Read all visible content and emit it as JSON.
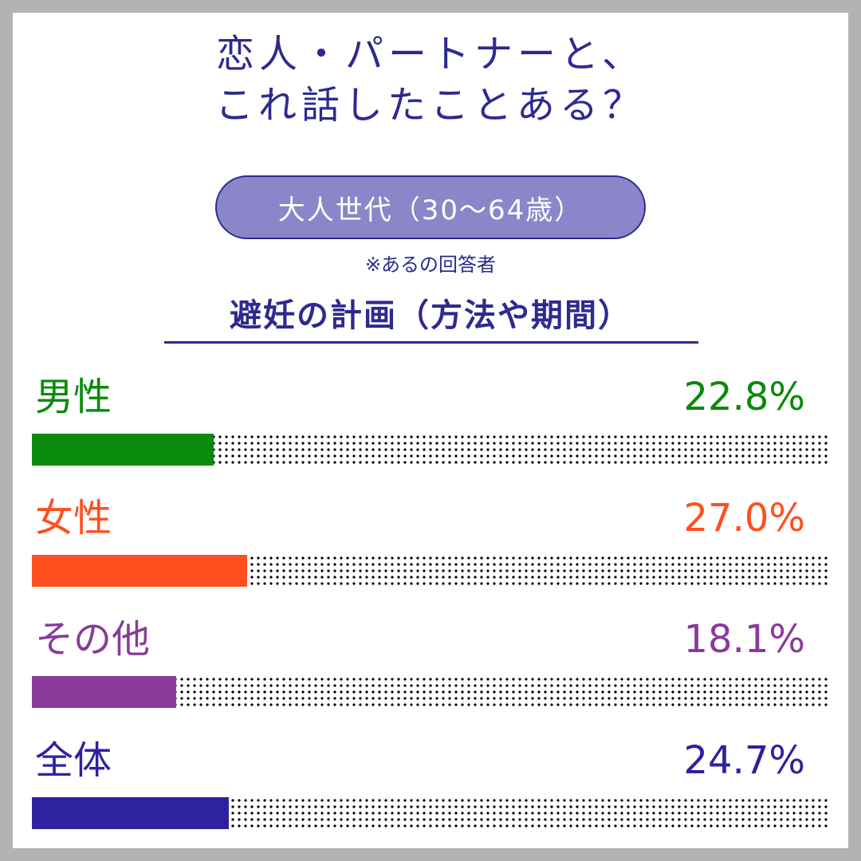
{
  "title": {
    "line1": "恋人・パートナーと、",
    "line2": "これ話したことある？"
  },
  "group_label": "大人世代（30〜64歳）",
  "note": "※あるの回答者",
  "subtitle": "避妊の計画（方法や期間）",
  "chart_data": {
    "type": "bar",
    "orientation": "horizontal",
    "title": "避妊の計画（方法や期間）",
    "unit": "%",
    "xlim": [
      0,
      100
    ],
    "categories": [
      "男性",
      "女性",
      "その他",
      "全体"
    ],
    "values": [
      22.8,
      27.0,
      18.1,
      24.7
    ],
    "value_labels": [
      "22.8%",
      "27.0%",
      "18.1%",
      "24.7%"
    ],
    "colors": [
      "#0a8a0a",
      "#ff4f1f",
      "#8a3a9a",
      "#2e22a0"
    ]
  }
}
